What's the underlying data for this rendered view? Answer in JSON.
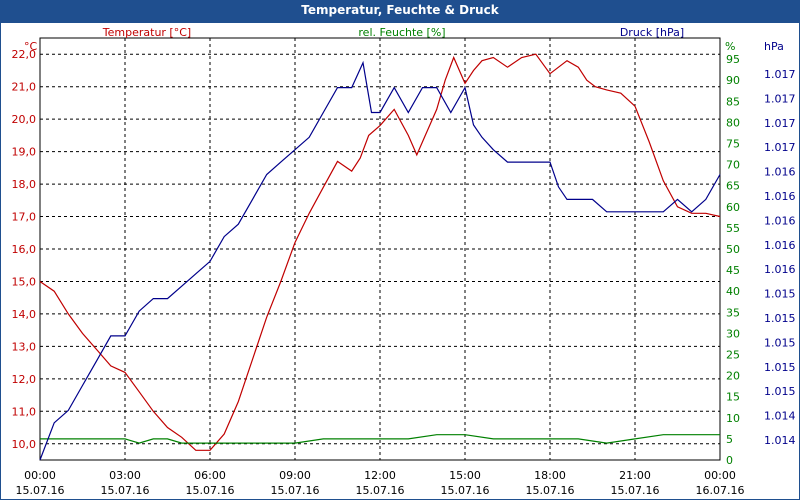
{
  "title": "Temperatur, Feuchte & Druck",
  "chart_data": {
    "type": "line",
    "title": "Temperatur, Feuchte & Druck",
    "x_labels": [
      {
        "time": "00:00",
        "date": "15.07.16"
      },
      {
        "time": "03:00",
        "date": "15.07.16"
      },
      {
        "time": "06:00",
        "date": "15.07.16"
      },
      {
        "time": "09:00",
        "date": "15.07.16"
      },
      {
        "time": "12:00",
        "date": "15.07.16"
      },
      {
        "time": "15:00",
        "date": "15.07.16"
      },
      {
        "time": "18:00",
        "date": "15.07.16"
      },
      {
        "time": "21:00",
        "date": "15.07.16"
      },
      {
        "time": "00:00",
        "date": "16.07.16"
      }
    ],
    "xlim": [
      0,
      24
    ],
    "axes": {
      "temperature": {
        "title": "Temperatur [°C]",
        "unit": "°C",
        "color": "#c00000",
        "range": [
          9.5,
          22.5
        ],
        "ticks": [
          "10,0",
          "11,0",
          "12,0",
          "13,0",
          "14,0",
          "15,0",
          "16,0",
          "17,0",
          "18,0",
          "19,0",
          "20,0",
          "21,0",
          "22,0"
        ]
      },
      "humidity": {
        "title": "rel. Feuchte [%]",
        "unit": "%",
        "color": "#008000",
        "range": [
          0,
          100
        ],
        "ticks": [
          "0",
          "5",
          "10",
          "15",
          "20",
          "25",
          "30",
          "35",
          "40",
          "45",
          "50",
          "55",
          "60",
          "65",
          "70",
          "75",
          "80",
          "85",
          "90",
          "95"
        ]
      },
      "pressure": {
        "title": "Druck [hPa]",
        "unit": "hPa",
        "color": "#00008b",
        "range": [
          1013.8,
          1017.2
        ],
        "ticks": [
          "1.014",
          "1.014",
          "1.015",
          "1.015",
          "1.015",
          "1.015",
          "1.015",
          "1.016",
          "1.016",
          "1.016",
          "1.016",
          "1.016",
          "1.017",
          "1.017",
          "1.017",
          "1.017"
        ]
      }
    },
    "series": [
      {
        "name": "Temperatur",
        "axis": "temperature",
        "color": "#c00000",
        "x": [
          0,
          0.5,
          1,
          1.5,
          2,
          2.5,
          3,
          3.5,
          4,
          4.5,
          5,
          5.5,
          6,
          6.5,
          7,
          7.5,
          8,
          8.5,
          9,
          9.5,
          10,
          10.5,
          11,
          11.3,
          11.6,
          12,
          12.5,
          13,
          13.3,
          13.6,
          14,
          14.3,
          14.6,
          15,
          15.3,
          15.6,
          16,
          16.5,
          17,
          17.5,
          18,
          18.3,
          18.6,
          19,
          19.3,
          19.6,
          20,
          20.5,
          21,
          21.5,
          22,
          22.5,
          23,
          23.5,
          24
        ],
        "y": [
          15,
          14.7,
          14,
          13.4,
          12.9,
          12.4,
          12.2,
          11.6,
          11,
          10.5,
          10.2,
          9.8,
          9.8,
          10.3,
          11.3,
          12.6,
          13.9,
          15,
          16.2,
          17.1,
          17.9,
          18.7,
          18.4,
          18.8,
          19.5,
          19.8,
          20.3,
          19.5,
          18.9,
          19.5,
          20.3,
          21.2,
          21.9,
          21.1,
          21.5,
          21.8,
          21.9,
          21.6,
          21.9,
          22,
          21.4,
          21.6,
          21.8,
          21.6,
          21.2,
          21,
          20.9,
          20.8,
          20.4,
          19.3,
          18.1,
          17.3,
          17.1,
          17.1,
          17
        ]
      },
      {
        "name": "rel. Feuchte",
        "axis": "humidity",
        "color": "#008000",
        "x": [
          0,
          1,
          2,
          3,
          3.5,
          4,
          4.5,
          5,
          5.5,
          6,
          7,
          8,
          9,
          10,
          11,
          12,
          13,
          14,
          15,
          16,
          17,
          18,
          19,
          20,
          21,
          22,
          22.5,
          23,
          23.5,
          24
        ],
        "y": [
          5,
          5,
          5,
          5,
          4,
          5,
          5,
          4,
          4,
          4,
          4,
          4,
          4,
          5,
          5,
          5,
          5,
          6,
          6,
          5,
          5,
          5,
          5,
          4,
          5,
          6,
          6,
          6,
          6,
          6
        ]
      },
      {
        "name": "Druck",
        "axis": "pressure",
        "color": "#00008b",
        "x": [
          0,
          0.5,
          1,
          1.5,
          2,
          2.5,
          3,
          3.5,
          4,
          4.5,
          5,
          5.5,
          6,
          6.5,
          7,
          7.5,
          8,
          8.5,
          9,
          9.5,
          10,
          10.5,
          11,
          11.4,
          11.7,
          12,
          12.5,
          13,
          13.5,
          14,
          14.5,
          15,
          15.3,
          15.6,
          16,
          16.5,
          17,
          17.5,
          18,
          18.3,
          18.6,
          19,
          19.5,
          20,
          21,
          22,
          22.5,
          23,
          23.5,
          24
        ],
        "y": [
          1013.8,
          1014.1,
          1014.2,
          1014.4,
          1014.6,
          1014.8,
          1014.8,
          1015,
          1015.1,
          1015.1,
          1015.2,
          1015.3,
          1015.4,
          1015.6,
          1015.7,
          1015.9,
          1016.1,
          1016.2,
          1016.3,
          1016.4,
          1016.6,
          1016.8,
          1016.8,
          1017,
          1016.6,
          1016.6,
          1016.8,
          1016.6,
          1016.8,
          1016.8,
          1016.6,
          1016.8,
          1016.5,
          1016.4,
          1016.3,
          1016.2,
          1016.2,
          1016.2,
          1016.2,
          1016,
          1015.9,
          1015.9,
          1015.9,
          1015.8,
          1015.8,
          1015.8,
          1015.9,
          1015.8,
          1015.9,
          1016.1
        ]
      }
    ],
    "grid": true
  }
}
